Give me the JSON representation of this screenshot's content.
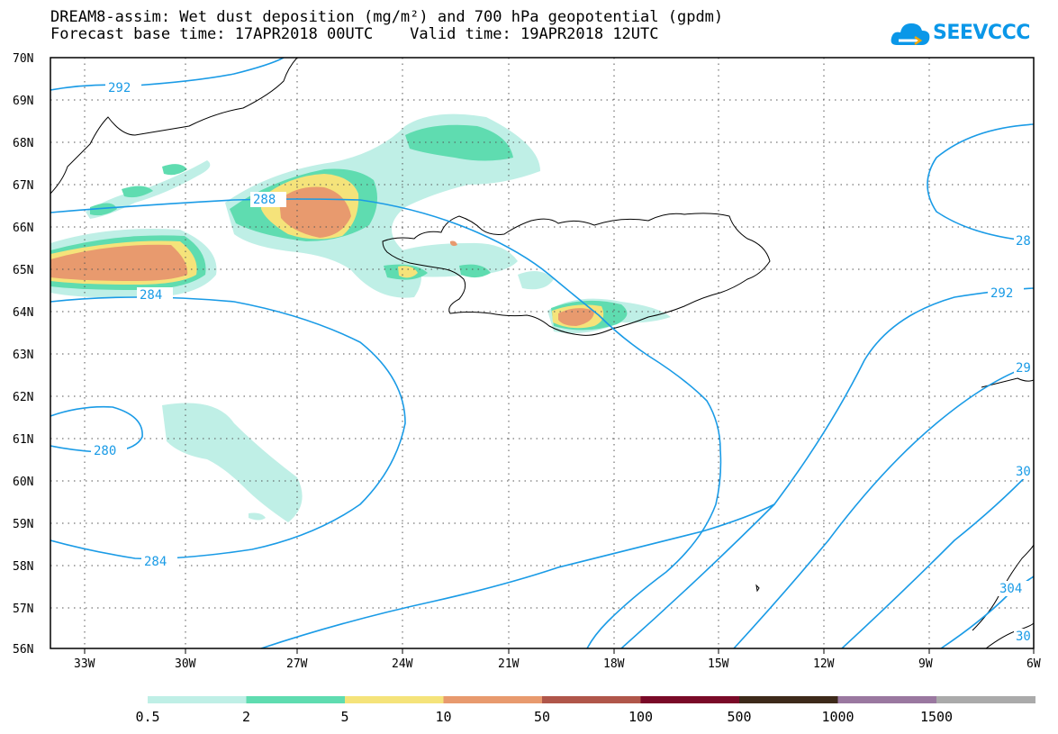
{
  "header": {
    "title_line1": "DREAM8-assim: Wet dust deposition (mg/m²) and 700 hPa geopotential (gpdm)",
    "title_line2": "Forecast base time: 17APR2018 00UTC    Valid time: 19APR2018 12UTC"
  },
  "logo": {
    "text": "SEEVCCC",
    "icon": "cloud-logo-icon"
  },
  "map": {
    "lat_labels": [
      "70N",
      "69N",
      "68N",
      "67N",
      "66N",
      "65N",
      "64N",
      "63N",
      "62N",
      "61N",
      "60N",
      "59N",
      "58N",
      "57N",
      "56N"
    ],
    "lon_labels": [
      "33W",
      "30W",
      "27W",
      "24W",
      "21W",
      "18W",
      "15W",
      "12W",
      "9W",
      "6W"
    ],
    "contour_color": "#1a9be6",
    "contour_labels": [
      "292",
      "288",
      "284",
      "280",
      "284",
      "292",
      "28",
      "29",
      "30",
      "304",
      "30"
    ],
    "region": "Iceland"
  },
  "legend": {
    "colors": [
      "#bfefe6",
      "#5fdcb0",
      "#f5e37a",
      "#e89a6e",
      "#b0564a",
      "#7a0a28",
      "#3d2a1a",
      "#9a78a0",
      "#aaaaaa"
    ],
    "labels": [
      "0.5",
      "2",
      "5",
      "10",
      "50",
      "100",
      "500",
      "1000",
      "1500"
    ]
  }
}
